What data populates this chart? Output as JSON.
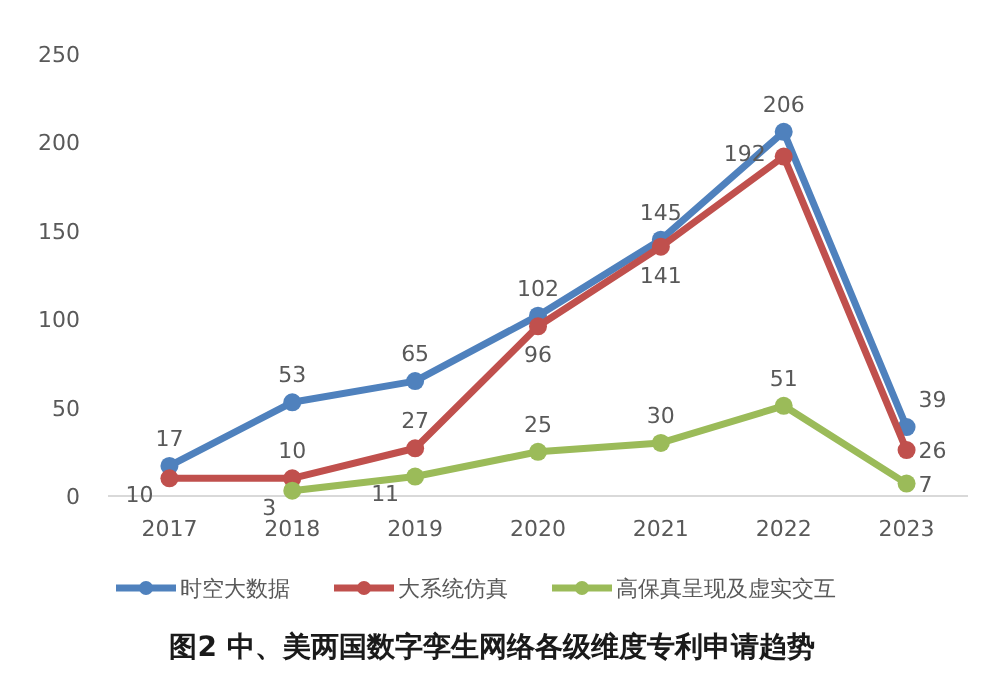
{
  "chart_data": {
    "type": "line",
    "title": "图2 中、美两国数字孪生网络各级维度专利申请趋势",
    "categories": [
      "2017",
      "2018",
      "2019",
      "2020",
      "2021",
      "2022",
      "2023"
    ],
    "series": [
      {
        "name": "时空大数据",
        "color": "#4f81bd",
        "values": [
          17,
          53,
          65,
          102,
          145,
          206,
          39
        ]
      },
      {
        "name": "大系统仿真",
        "color": "#c0504d",
        "values": [
          10,
          10,
          27,
          96,
          141,
          192,
          26
        ]
      },
      {
        "name": "高保真呈现及虚实交互",
        "color": "#9bbb59",
        "values": [
          null,
          3,
          11,
          25,
          30,
          51,
          7
        ]
      }
    ],
    "ylim": [
      0,
      250
    ],
    "yticks": [
      0,
      50,
      100,
      150,
      200,
      250
    ],
    "grid": false,
    "legend": "bottom",
    "marker": "circle",
    "line_style": "solid",
    "data_labels": true
  }
}
